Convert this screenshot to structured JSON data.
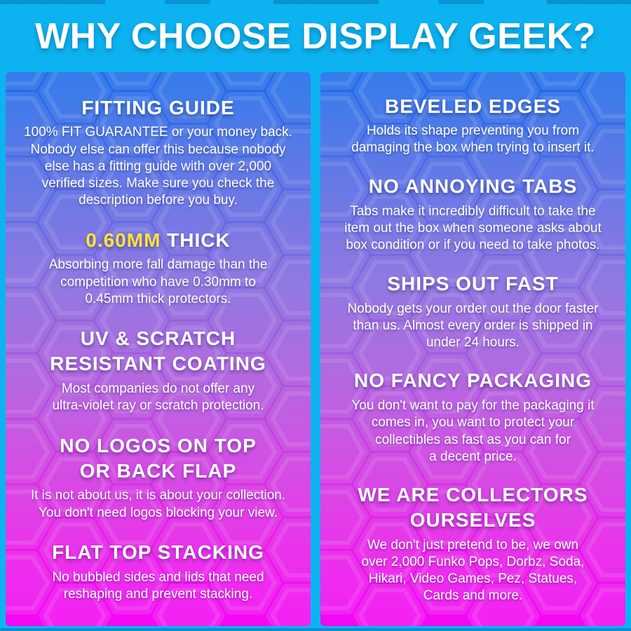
{
  "header": {
    "title": "WHY CHOOSE DISPLAY GEEK?"
  },
  "colors": {
    "frame_blue": "#0db3f0",
    "accent_yellow": "#ffe23c",
    "gradient_top": "#1d6de9",
    "gradient_middle": "#8569de",
    "gradient_bottom": "#f407f4",
    "text": "#ffffff"
  },
  "columns": {
    "left": {
      "sections": [
        {
          "heading_accent": "",
          "heading_text": "FITTING GUIDE",
          "body": "100% FIT GUARANTEE or your money back.\nNobody else can offer this because nobody\nelse has a fitting guide with over 2,000\nverified sizes. Make sure you check the\ndescription before you buy."
        },
        {
          "heading_accent": "0.60MM",
          "heading_text": " THICK",
          "body": "Absorbing more fall damage than the\ncompetition who have 0.30mm to\n0.45mm thick protectors."
        },
        {
          "heading_accent": "",
          "heading_text": "UV & SCRATCH\nRESISTANT COATING",
          "body": "Most companies do not offer any\nultra-violet ray or scratch protection."
        },
        {
          "heading_accent": "",
          "heading_text": "NO LOGOS ON TOP\nOR BACK FLAP",
          "body": "It is not about us, it is about your collection.\nYou don't need logos blocking your view."
        },
        {
          "heading_accent": "",
          "heading_text": "FLAT TOP STACKING",
          "body": "No bubbled sides and lids that need\nreshaping and prevent stacking."
        }
      ]
    },
    "right": {
      "sections": [
        {
          "heading_accent": "",
          "heading_text": "BEVELED EDGES",
          "body": "Holds its shape preventing you from\ndamaging the box when trying to insert it."
        },
        {
          "heading_accent": "",
          "heading_text": "NO ANNOYING TABS",
          "body": "Tabs make it incredibly difficult to take the\nitem out the box when someone asks about\nbox condition or if you need to take photos."
        },
        {
          "heading_accent": "",
          "heading_text": "SHIPS OUT FAST",
          "body": "Nobody gets your order out the door faster\nthan us. Almost every order is shipped in\nunder 24 hours."
        },
        {
          "heading_accent": "",
          "heading_text": "NO FANCY PACKAGING",
          "body": "You don't want to pay for the packaging it\ncomes in, you want to protect your\ncollectibles as fast as you can for\na decent price."
        },
        {
          "heading_accent": "",
          "heading_text": "WE ARE COLLECTORS\nOURSELVES",
          "body": "We don't just pretend to be, we own\nover 2,000 Funko Pops, Dorbz, Soda,\nHikari, Video Games, Pez, Statues,\nCards and more."
        }
      ]
    }
  }
}
